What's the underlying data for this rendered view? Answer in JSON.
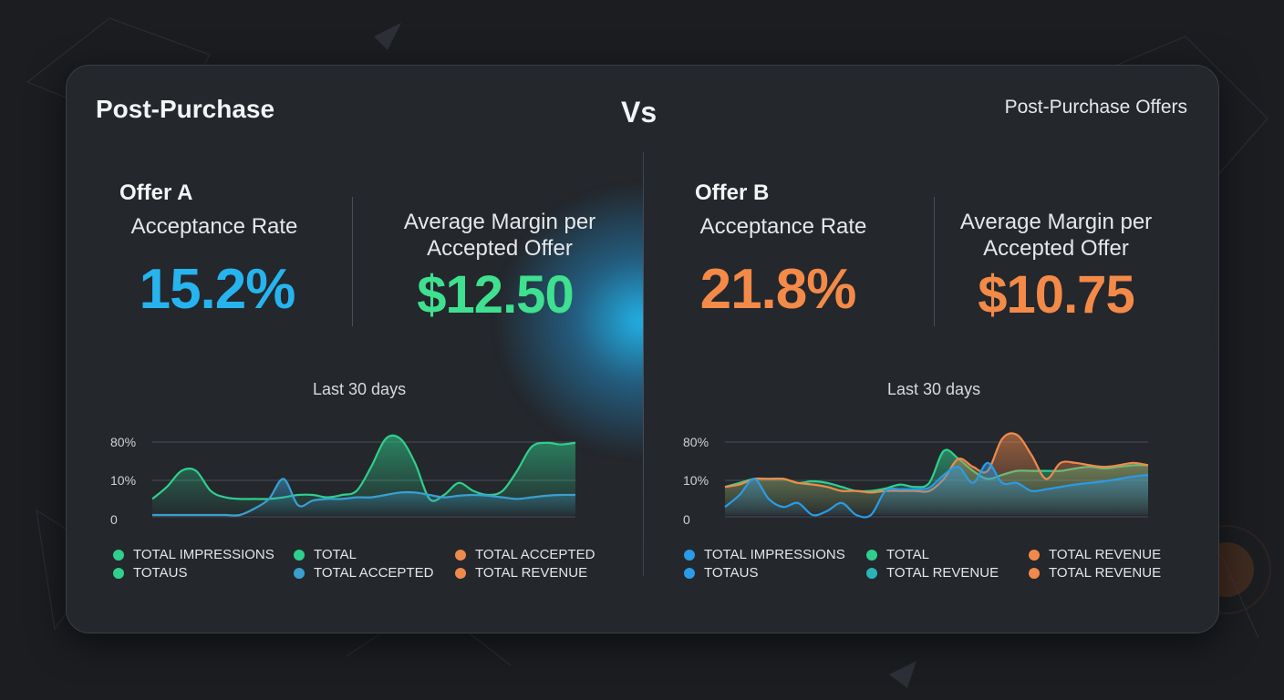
{
  "header": {
    "left_title": "Post-Purchase",
    "vs_label": "Vs",
    "right_title": "Post-Purchase Offers"
  },
  "offer_a": {
    "name": "Offer A",
    "acceptance_label": "Acceptance Rate",
    "acceptance_value": "15.2%",
    "margin_label_line1": "Average Margin per",
    "margin_label_line2": "Accepted Offer",
    "margin_value": "$12.50",
    "period": "Last 30 days",
    "legend": [
      {
        "label": "TOTAL IMPRESSIONS",
        "color": "#2fcf8e"
      },
      {
        "label": "TOTAL",
        "color": "#2fcf8e"
      },
      {
        "label": "TOTAL ACCEPTED",
        "color": "#f08a4b"
      },
      {
        "label": "TOTAUS",
        "color": "#2fcf8e"
      },
      {
        "label": "TOTAL ACCEPTED",
        "color": "#3a9fd0"
      },
      {
        "label": "TOTAL REVENUE",
        "color": "#f08a4b"
      }
    ]
  },
  "offer_b": {
    "name": "Offer B",
    "acceptance_label": "Acceptance Rate",
    "acceptance_value": "21.8%",
    "margin_label_line1": "Average Margin per",
    "margin_label_line2": "Accepted Offer",
    "margin_value": "$10.75",
    "period": "Last 30 days",
    "legend": [
      {
        "label": "TOTAL IMPRESSIONS",
        "color": "#2a9be6"
      },
      {
        "label": "TOTAL",
        "color": "#2fcf8e"
      },
      {
        "label": "TOTAL REVENUE",
        "color": "#f08a4b"
      },
      {
        "label": "TOTAUS",
        "color": "#2a9be6"
      },
      {
        "label": "TOTAL REVENUE",
        "color": "#2bb3b8"
      },
      {
        "label": "TOTAL REVENUE",
        "color": "#f08a4b"
      }
    ]
  },
  "colors": {
    "blue": "#26b4ee",
    "green": "#3fe08f",
    "orange": "#f38a48",
    "background": "#1b1d21",
    "card": "#24272c"
  },
  "chart_data": [
    {
      "type": "area",
      "title": "",
      "y_tick_labels": [
        "80%",
        "10%",
        "0"
      ],
      "x": [
        1,
        2,
        3,
        4,
        5,
        6,
        7,
        8,
        9,
        10,
        11,
        12,
        13,
        14,
        15,
        16,
        17,
        18,
        19,
        20,
        21,
        22,
        23,
        24,
        25,
        26,
        27,
        28,
        29,
        30
      ],
      "series": [
        {
          "color": "#2fcf8e",
          "values": [
            20,
            35,
            55,
            55,
            30,
            22,
            20,
            20,
            20,
            22,
            25,
            25,
            22,
            25,
            30,
            60,
            95,
            95,
            65,
            20,
            25,
            40,
            30,
            25,
            30,
            55,
            85,
            90,
            88,
            90
          ]
        },
        {
          "color": "#3a9fd0",
          "values": [
            0,
            0,
            0,
            0,
            0,
            0,
            0,
            8,
            20,
            45,
            12,
            18,
            20,
            20,
            22,
            22,
            25,
            28,
            28,
            25,
            22,
            24,
            25,
            24,
            22,
            20,
            22,
            24,
            25,
            25
          ]
        }
      ]
    },
    {
      "type": "area",
      "title": "",
      "y_tick_labels": [
        "80%",
        "10%",
        "0"
      ],
      "x": [
        1,
        2,
        3,
        4,
        5,
        6,
        7,
        8,
        9,
        10,
        11,
        12,
        13,
        14,
        15,
        16,
        17,
        18,
        19,
        20,
        21,
        22,
        23,
        24,
        25,
        26,
        27,
        28,
        29,
        30
      ],
      "series": [
        {
          "color": "#2fcf8e",
          "values": [
            35,
            40,
            45,
            45,
            45,
            40,
            42,
            40,
            35,
            30,
            30,
            33,
            38,
            35,
            40,
            80,
            70,
            55,
            45,
            50,
            55,
            55,
            55,
            55,
            58,
            60,
            58,
            60,
            62,
            62
          ]
        },
        {
          "color": "#f08a4b",
          "values": [
            35,
            38,
            45,
            45,
            45,
            40,
            38,
            35,
            30,
            30,
            28,
            30,
            30,
            30,
            30,
            45,
            70,
            60,
            55,
            95,
            100,
            75,
            45,
            65,
            65,
            62,
            60,
            62,
            65,
            62
          ]
        },
        {
          "color": "#2a9be6",
          "values": [
            10,
            25,
            45,
            20,
            10,
            15,
            0,
            5,
            15,
            0,
            0,
            30,
            32,
            32,
            34,
            50,
            60,
            40,
            65,
            40,
            40,
            30,
            32,
            35,
            38,
            40,
            42,
            45,
            48,
            50
          ]
        }
      ]
    }
  ]
}
